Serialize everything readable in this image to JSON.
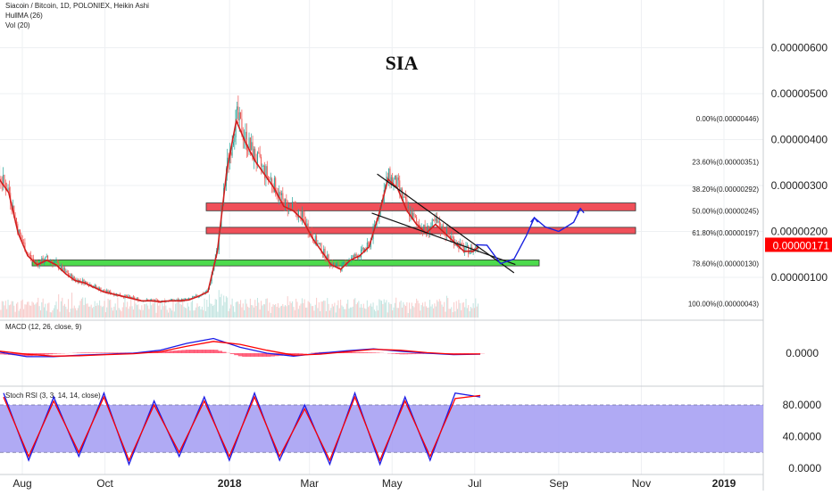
{
  "header": {
    "symbol_line": "Siacoin / Bitcoin, 1D, POLONIEX, Heikin Ashi",
    "hull_label": "HullMA (26)",
    "vol_label": "Vol (20)"
  },
  "chart_title": "SIA",
  "price_badge": "0.00000171",
  "colors": {
    "accent_red": "#ff0000",
    "macd_blue": "#1a1ae6",
    "bull_candle": "#26a69a",
    "bear_candle": "#ef5350",
    "zone_red": "#f0505a",
    "zone_green": "#4ddb4d",
    "rsi_band": "#a29bf2",
    "path_blue": "#1a22e0"
  },
  "chart_data": [
    {
      "type": "line",
      "panel": "price",
      "y_scale": "linear",
      "grid": true,
      "x_ticks": [
        "Aug",
        "Oct",
        "2018",
        "Mar",
        "May",
        "Jul",
        "Sep",
        "Nov",
        "2019"
      ],
      "y_ticks": [
        "0.00000100",
        "0.00000200",
        "0.00000300",
        "0.00000400",
        "0.00000500",
        "0.00000600"
      ],
      "ylim": [
        2e-07,
        6.85e-06
      ],
      "series": [
        {
          "x": [
            "2017-07-01",
            "2017-07-08",
            "2017-07-15",
            "2017-07-22",
            "2017-07-29",
            "2017-08-05",
            "2017-08-12",
            "2017-08-19",
            "2017-08-26",
            "2017-09-02",
            "2017-09-09",
            "2017-09-16",
            "2017-09-23",
            "2017-09-30",
            "2017-10-07",
            "2017-10-14",
            "2017-10-21",
            "2017-10-28",
            "2017-11-04",
            "2017-11-11",
            "2017-11-18",
            "2017-11-25",
            "2017-12-02",
            "2017-12-09",
            "2017-12-16",
            "2017-12-23",
            "2017-12-30",
            "2018-01-06",
            "2018-01-13",
            "2018-01-20",
            "2018-01-27",
            "2018-02-03",
            "2018-02-10",
            "2018-02-17",
            "2018-02-24",
            "2018-03-03",
            "2018-03-10",
            "2018-03-17",
            "2018-03-24",
            "2018-03-31",
            "2018-04-07",
            "2018-04-14",
            "2018-04-21",
            "2018-04-28",
            "2018-05-05",
            "2018-05-12",
            "2018-05-19",
            "2018-05-26",
            "2018-06-02",
            "2018-06-09",
            "2018-06-16",
            "2018-06-23",
            "2018-06-30",
            "2018-07-04"
          ],
          "values": [
            2.7e-06,
            3.8e-06,
            3.2e-06,
            2.9e-06,
            2e-06,
            1.5e-06,
            1.3e-06,
            1.4e-06,
            1.3e-06,
            1.1e-06,
            9.5e-07,
            9e-07,
            8e-07,
            7e-07,
            6.5e-07,
            6e-07,
            5.5e-07,
            5e-07,
            5e-07,
            4.8e-07,
            5e-07,
            5e-07,
            5.2e-07,
            6e-07,
            7e-07,
            1.6e-06,
            3.4e-06,
            4.5e-06,
            4e-06,
            3.6e-06,
            3.3e-06,
            3e-06,
            2.6e-06,
            2.5e-06,
            2.3e-06,
            1.9e-06,
            1.6e-06,
            1.3e-06,
            1.2e-06,
            1.4e-06,
            1.5e-06,
            1.7e-06,
            2.4e-06,
            3.2e-06,
            3e-06,
            2.5e-06,
            2.2e-06,
            2e-06,
            2.2e-06,
            2e-06,
            1.8e-06,
            1.6e-06,
            1.6e-06,
            1.7e-06
          ]
        }
      ],
      "horizontal_zones": [
        {
          "low": 2.45e-06,
          "high": 2.62e-06,
          "color": "red"
        },
        {
          "low": 1.95e-06,
          "high": 2.09e-06,
          "color": "red"
        },
        {
          "low": 1.25e-06,
          "high": 1.38e-06,
          "color": "green"
        }
      ],
      "fib_levels": [
        {
          "label": "0.00%(0.00000446)",
          "value": 4.46e-06
        },
        {
          "label": "23.60%(0.00000351)",
          "value": 3.51e-06
        },
        {
          "label": "38.20%(0.00000292)",
          "value": 2.92e-06
        },
        {
          "label": "50.00%(0.00000245)",
          "value": 2.45e-06
        },
        {
          "label": "61.80%(0.00000197)",
          "value": 1.97e-06
        },
        {
          "label": "78.60%(0.00000130)",
          "value": 1.3e-06
        },
        {
          "label": "100.00%(0.00000043)",
          "value": 4.3e-07
        }
      ]
    },
    {
      "type": "line",
      "panel": "macd",
      "title": "MACD (12, 26, close, 9)",
      "y_ticks": [
        "0.0000"
      ],
      "series": [
        {
          "name": "MACD",
          "values": [
            0.1,
            -0.35,
            -0.35,
            -0.2,
            -0.1,
            0.0,
            0.3,
            1.0,
            1.5,
            0.6,
            0.0,
            -0.3,
            0.0,
            0.25,
            0.45,
            0.2,
            0.0,
            -0.15,
            -0.1
          ]
        },
        {
          "name": "Signal",
          "values": [
            0.2,
            -0.1,
            -0.3,
            -0.25,
            -0.15,
            -0.05,
            0.15,
            0.7,
            1.2,
            0.9,
            0.3,
            -0.2,
            -0.1,
            0.15,
            0.4,
            0.3,
            0.05,
            -0.1,
            -0.08
          ]
        }
      ]
    },
    {
      "type": "line",
      "panel": "stoch_rsi",
      "title": "Stoch RSI (3, 3, 14, 14, close)",
      "y_ticks": [
        "0.0000",
        "40.0000",
        "80.0000"
      ],
      "ylim": [
        0,
        100
      ],
      "band": [
        20,
        80
      ],
      "series": [
        {
          "name": "K",
          "values": [
            95,
            10,
            90,
            15,
            95,
            5,
            85,
            15,
            90,
            10,
            95,
            10,
            80,
            5,
            95,
            5,
            90,
            10,
            95,
            90
          ]
        },
        {
          "name": "D",
          "values": [
            90,
            15,
            85,
            20,
            90,
            10,
            80,
            20,
            85,
            15,
            90,
            15,
            75,
            10,
            90,
            10,
            85,
            15,
            88,
            92
          ]
        }
      ]
    }
  ]
}
